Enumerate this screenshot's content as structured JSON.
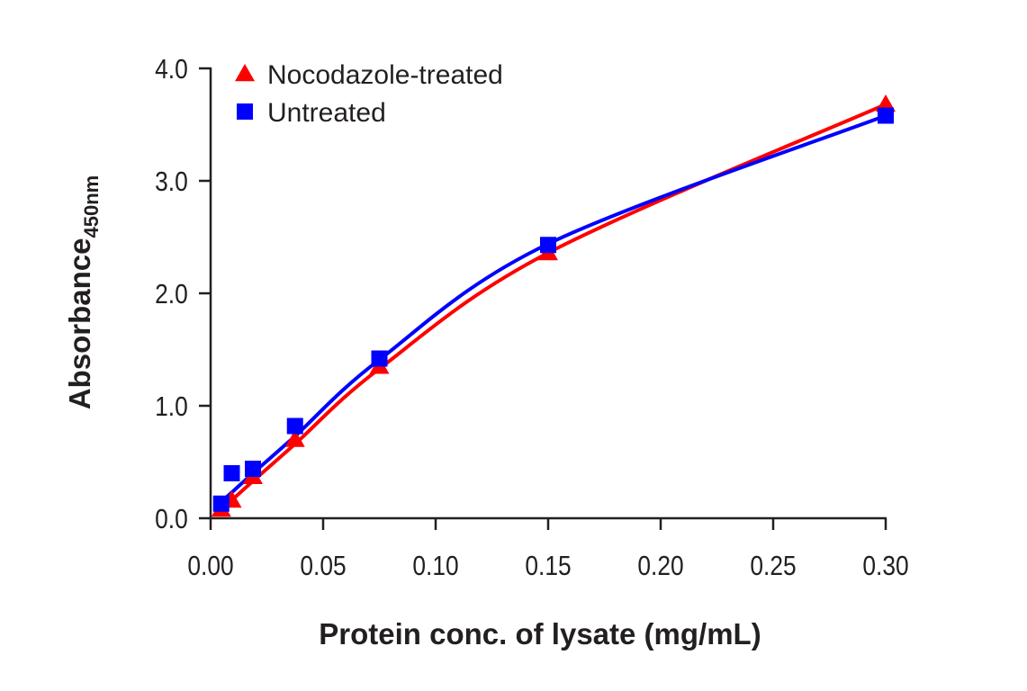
{
  "chart_data": {
    "type": "scatter",
    "xlabel": "Protein conc. of lysate (mg/mL)",
    "ylabel": "Absorbance",
    "ylabel_subscript": "450nm",
    "xlim": [
      0,
      0.3
    ],
    "ylim": [
      0,
      4.0
    ],
    "x_ticks": [
      0.0,
      0.05,
      0.1,
      0.15,
      0.2,
      0.25,
      0.3
    ],
    "x_tick_labels": [
      "0.00",
      "0.05",
      "0.10",
      "0.15",
      "0.20",
      "0.25",
      "0.30"
    ],
    "y_ticks": [
      0.0,
      1.0,
      2.0,
      3.0,
      4.0
    ],
    "y_tick_labels": [
      "0.0",
      "1.0",
      "2.0",
      "3.0",
      "4.0"
    ],
    "legend_position": "top-left",
    "grid": false,
    "series": [
      {
        "name": "Nocodazole-treated",
        "marker": "triangle",
        "color": "#ff0000",
        "x": [
          0.0047,
          0.0094,
          0.0188,
          0.0375,
          0.075,
          0.15,
          0.3
        ],
        "y": [
          0.08,
          0.16,
          0.37,
          0.7,
          1.35,
          2.36,
          3.68
        ],
        "fit_y": [
          0.07,
          0.16,
          0.33,
          0.66,
          1.33,
          2.36,
          3.68
        ]
      },
      {
        "name": "Untreated",
        "marker": "square",
        "color": "#0000ff",
        "x": [
          0.0047,
          0.0094,
          0.0188,
          0.0375,
          0.075,
          0.15,
          0.3
        ],
        "y": [
          0.13,
          0.4,
          0.44,
          0.82,
          1.42,
          2.43,
          3.58
        ],
        "fit_y": [
          0.15,
          0.23,
          0.4,
          0.73,
          1.41,
          2.44,
          3.58
        ]
      }
    ]
  }
}
